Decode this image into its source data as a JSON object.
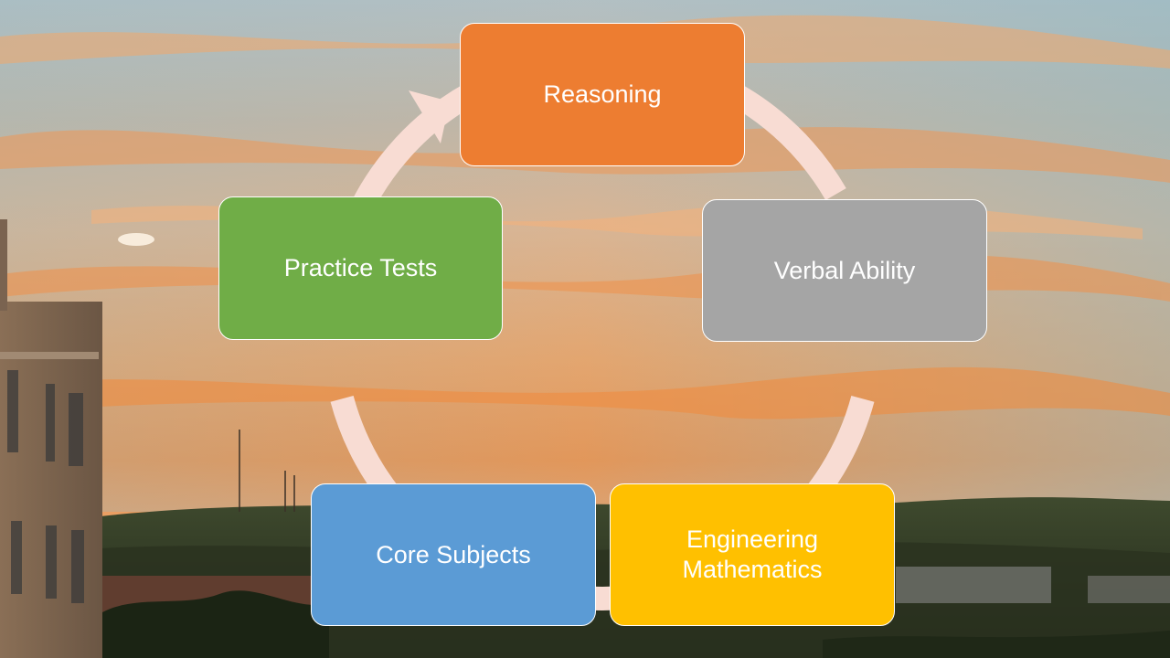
{
  "diagram": {
    "type": "cycle",
    "arrow_color": "#f8dcd3",
    "nodes": [
      {
        "id": "reasoning",
        "label": "Reasoning",
        "color": "#ed7d31"
      },
      {
        "id": "verbal",
        "label": "Verbal Ability",
        "color": "#a5a5a5"
      },
      {
        "id": "engineering",
        "label": "Engineering\nMathematics",
        "color": "#ffc000"
      },
      {
        "id": "core",
        "label": "Core Subjects",
        "color": "#5b9bd5"
      },
      {
        "id": "practice",
        "label": "Practice Tests",
        "color": "#70ad47"
      }
    ]
  }
}
